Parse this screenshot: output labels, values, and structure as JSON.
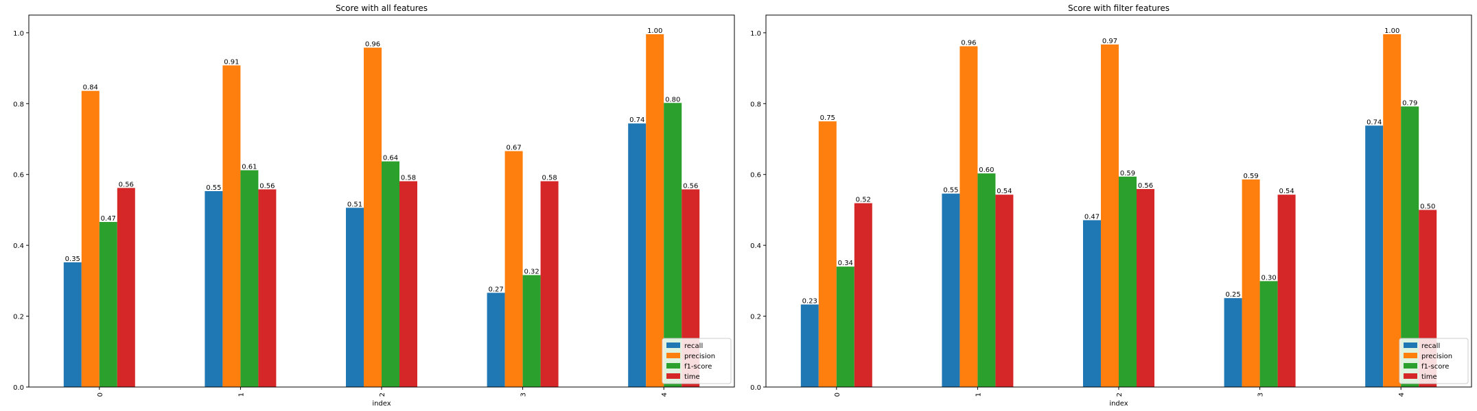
{
  "chart_data": [
    {
      "type": "bar",
      "title": "Score with all features",
      "xlabel": "index",
      "ylabel": "",
      "ylim": [
        0,
        1.05
      ],
      "yticks": [
        "0.0",
        "0.2",
        "0.4",
        "0.6",
        "0.8",
        "1.0"
      ],
      "categories": [
        "0",
        "1",
        "2",
        "3",
        "4"
      ],
      "legend_position": "lower right",
      "series": [
        {
          "name": "recall",
          "color": "#1f77b4",
          "values": [
            0.352,
            0.553,
            0.506,
            0.266,
            0.744
          ],
          "labels": [
            "0.35",
            "0.55",
            "0.51",
            "0.27",
            "0.74"
          ]
        },
        {
          "name": "precision",
          "color": "#ff7f0e",
          "values": [
            0.836,
            0.908,
            0.958,
            0.666,
            0.996
          ],
          "labels": [
            "0.84",
            "0.91",
            "0.96",
            "0.67",
            "1.00"
          ]
        },
        {
          "name": "f1-score",
          "color": "#2ca02c",
          "values": [
            0.466,
            0.612,
            0.637,
            0.316,
            0.802
          ],
          "labels": [
            "0.47",
            "0.61",
            "0.64",
            "0.32",
            "0.80"
          ]
        },
        {
          "name": "time",
          "color": "#d62728",
          "values": [
            0.562,
            0.558,
            0.581,
            0.581,
            0.558
          ],
          "labels": [
            "0.56",
            "0.56",
            "0.58",
            "0.58",
            "0.56"
          ]
        }
      ]
    },
    {
      "type": "bar",
      "title": "Score with filter features",
      "xlabel": "index",
      "ylabel": "",
      "ylim": [
        0,
        1.05
      ],
      "yticks": [
        "0.0",
        "0.2",
        "0.4",
        "0.6",
        "0.8",
        "1.0"
      ],
      "categories": [
        "0",
        "1",
        "2",
        "3",
        "4"
      ],
      "legend_position": "lower right",
      "series": [
        {
          "name": "recall",
          "color": "#1f77b4",
          "values": [
            0.233,
            0.546,
            0.471,
            0.251,
            0.738
          ],
          "labels": [
            "0.23",
            "0.55",
            "0.47",
            "0.25",
            "0.74"
          ]
        },
        {
          "name": "precision",
          "color": "#ff7f0e",
          "values": [
            0.75,
            0.962,
            0.967,
            0.586,
            0.996
          ],
          "labels": [
            "0.75",
            "0.96",
            "0.97",
            "0.59",
            "1.00"
          ]
        },
        {
          "name": "f1-score",
          "color": "#2ca02c",
          "values": [
            0.34,
            0.603,
            0.594,
            0.299,
            0.792
          ],
          "labels": [
            "0.34",
            "0.60",
            "0.59",
            "0.30",
            "0.79"
          ]
        },
        {
          "name": "time",
          "color": "#d62728",
          "values": [
            0.519,
            0.543,
            0.559,
            0.543,
            0.5
          ],
          "labels": [
            "0.52",
            "0.54",
            "0.56",
            "0.54",
            "0.50"
          ]
        }
      ]
    }
  ]
}
